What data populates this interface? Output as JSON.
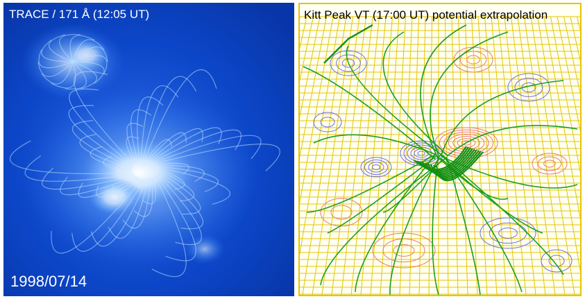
{
  "left_panel": {
    "title": "TRACE / 171 Å  (12:05 UT)",
    "date": "1998/07/14"
  },
  "right_panel": {
    "title": "Kitt Peak VT (17:00 UT) potential extrapolation"
  },
  "colors": {
    "euv_background": "#0a3fc0",
    "grid": "#e3c500",
    "field_lines": "#1aa01a",
    "positive_contours": "#e87878",
    "negative_contours": "#6f6fe0"
  }
}
